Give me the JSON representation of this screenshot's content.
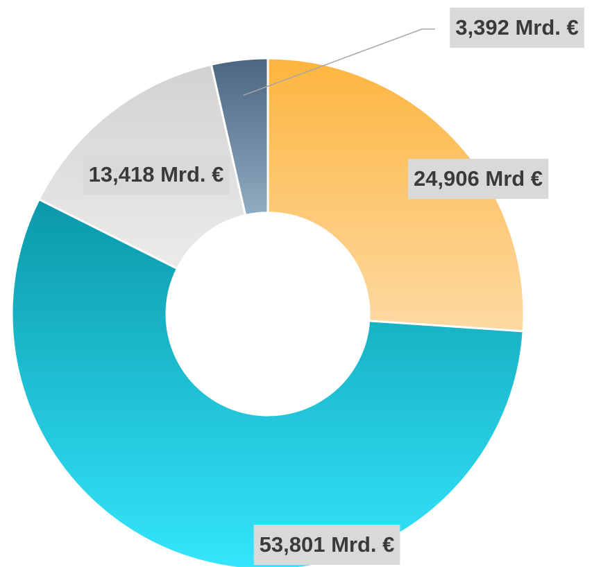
{
  "chart_data": {
    "type": "donut",
    "categories": [
      null,
      null,
      null,
      null
    ],
    "values": [
      24.906,
      53.801,
      13.418,
      3.392
    ],
    "value_labels": [
      "24,906 Mrd €",
      "53,801 Mrd. €",
      "13,418 Mrd. €",
      "3,392 Mrd. €"
    ],
    "colors": [
      [
        "#fdb53f",
        "#fdd9a2"
      ],
      [
        "#0a98a8",
        "#34e6fd"
      ],
      [
        "#d2d2d2",
        "#ebebeb"
      ],
      [
        "#4a6580",
        "#90acc2"
      ]
    ]
  }
}
